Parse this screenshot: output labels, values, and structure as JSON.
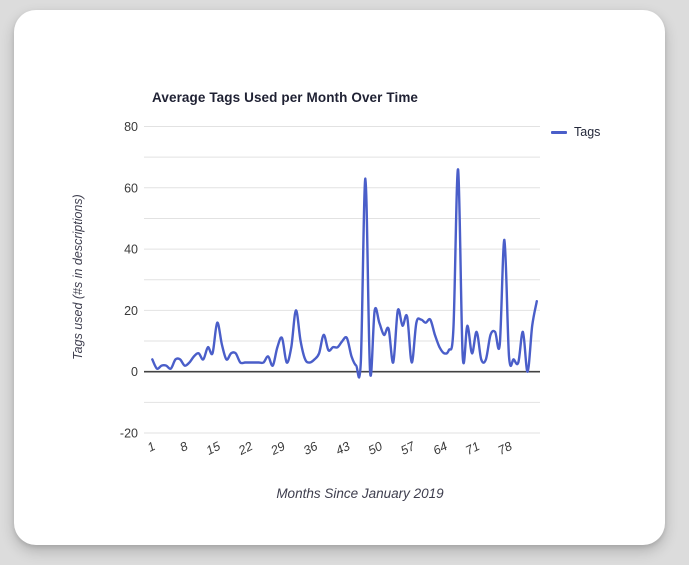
{
  "page": {
    "background_color": "#dcdcdc",
    "card_color": "#ffffff"
  },
  "chart_data": {
    "type": "line",
    "title": "Average Tags Used per Month Over Time",
    "xlabel": "Months Since January 2019",
    "ylabel": "Tags used (#s in descriptions)",
    "series": [
      {
        "name": "Tags",
        "color": "#4a5ec9",
        "x_start": 1,
        "values": [
          4,
          1,
          2,
          2,
          1,
          4,
          4,
          2,
          3,
          5,
          6,
          4,
          8,
          6,
          16,
          9,
          4,
          6,
          6,
          3,
          3,
          3,
          3,
          3,
          3,
          5,
          2,
          8,
          11,
          3,
          8,
          20,
          10,
          4,
          3,
          4,
          6,
          12,
          7,
          8,
          8,
          10,
          11,
          5,
          2,
          3,
          63,
          0,
          20,
          16,
          12,
          14,
          3,
          20,
          15,
          18,
          3,
          16,
          17,
          16,
          17,
          12,
          8,
          6,
          7,
          14,
          66,
          5,
          15,
          6,
          13,
          4,
          4,
          12,
          13,
          9,
          43,
          5,
          4,
          3,
          13,
          0,
          15,
          23
        ]
      }
    ],
    "x_ticks": [
      1,
      8,
      15,
      22,
      29,
      36,
      43,
      50,
      57,
      64,
      71,
      78
    ],
    "y_ticks": [
      -20,
      0,
      20,
      40,
      60,
      80
    ],
    "xlim": [
      1,
      84
    ],
    "ylim": [
      -20,
      80
    ],
    "grid": "horizontal-every-10",
    "legend_position": "top-right",
    "grid_color": "#e2e2e2",
    "zero_line_color": "#424242",
    "tick_label_color": "#3a3a3a"
  }
}
